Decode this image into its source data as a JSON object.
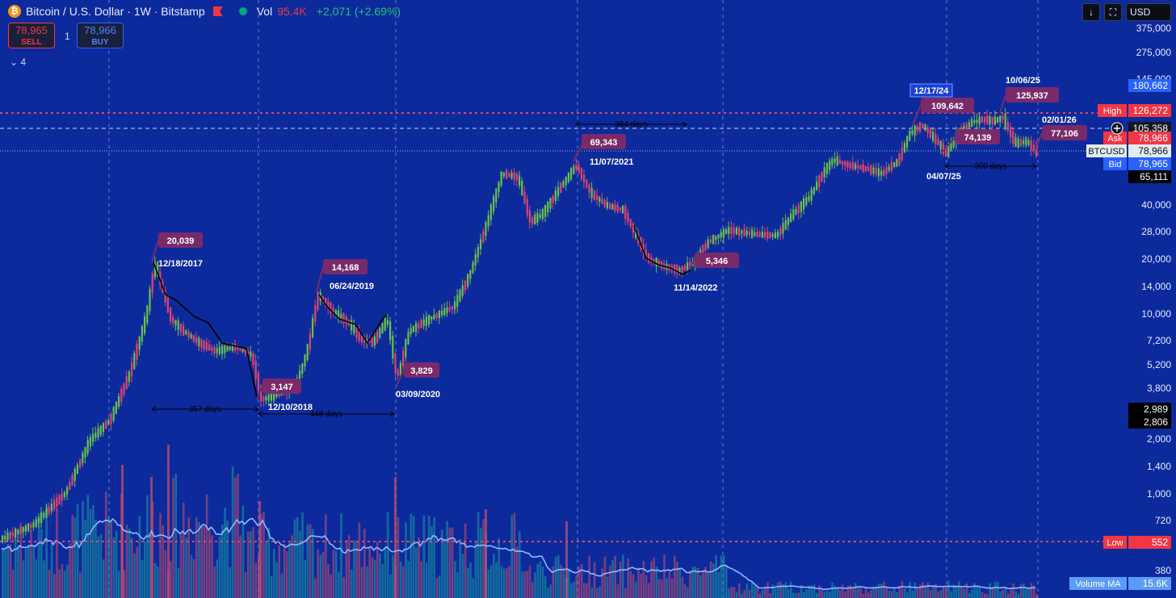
{
  "header": {
    "logo_glyph": "₿",
    "title": "Bitcoin / U.S. Dollar · 1W · Bitstamp",
    "vol_label": "Vol",
    "vol_value": "95.4K",
    "change": "+2,071 (+2.69%)"
  },
  "trade": {
    "sell_price": "78,965",
    "sell_label": "SELL",
    "quantity": "1",
    "buy_price": "78,966",
    "buy_label": "BUY"
  },
  "layers_label": "4",
  "toolbar": {
    "download_icon": "↓",
    "fullscreen_icon": "⛶",
    "currency": "USD"
  },
  "axis_ticks": [
    "375,000",
    "275,000",
    "145,000",
    "40,000",
    "28,000",
    "20,000",
    "14,000",
    "10,000",
    "7,200",
    "5,200",
    "3,800",
    "2,000",
    "1,400",
    "1,000",
    "720",
    "380"
  ],
  "price_tags": [
    {
      "label": "",
      "value": "180,662",
      "color": "#2962ff"
    },
    {
      "label": "High",
      "value": "126,272",
      "color": "#f23645"
    },
    {
      "label": "",
      "value": "105,358",
      "color": "#131722"
    },
    {
      "label": "Ask",
      "value": "78,966",
      "color": "#f23645"
    },
    {
      "label": "BTCUSD",
      "value": "78,966",
      "color": "#e1ecf2"
    },
    {
      "label": "Bid",
      "value": "78,965",
      "color": "#2962ff"
    },
    {
      "label": "",
      "value": "65,111",
      "color": "#000000"
    },
    {
      "label": "",
      "value": "2,989",
      "color": "#000000"
    },
    {
      "label": "",
      "value": "2,806",
      "color": "#000000"
    },
    {
      "label": "Low",
      "value": "552",
      "color": "#f23645"
    },
    {
      "label": "Volume MA",
      "value": "15.6K",
      "color": "#5b9cf6"
    }
  ],
  "annotations": {
    "peaks": [
      {
        "price": "20,039",
        "date": "12/18/2017"
      },
      {
        "price": "14,168",
        "date": "06/24/2019"
      },
      {
        "price": "69,343",
        "date": "11/07/2021"
      },
      {
        "price": "109,642",
        "date": "12/17/24"
      },
      {
        "price": "125,937",
        "date": "10/06/25"
      },
      {
        "price": "77,106",
        "date": "02/01/26"
      }
    ],
    "troughs": [
      {
        "price": "3,147",
        "date": "12/10/2018"
      },
      {
        "price": "3,829",
        "date": "03/09/2020"
      },
      {
        "price": "5,346",
        "date": "11/14/2022"
      },
      {
        "price": "74,139",
        "date": "04/07/25"
      }
    ],
    "spans": [
      "357 days",
      "448 days",
      "364 days",
      "300 days"
    ]
  },
  "colors": {
    "background": "#0c2a9c",
    "up": "#6cc04a",
    "down": "#e0456b",
    "label_bg": "#7a2a6a",
    "ma_line": "#8fb8ff",
    "grid": "#5d78d6"
  }
}
